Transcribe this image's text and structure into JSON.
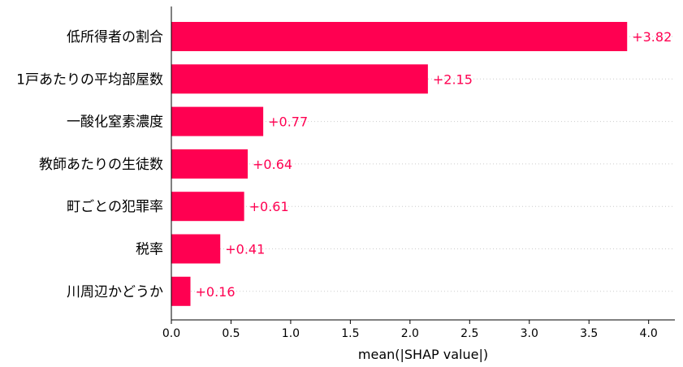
{
  "chart_data": {
    "type": "bar",
    "orientation": "horizontal",
    "categories": [
      "低所得者の割合",
      "1戸あたりの平均部屋数",
      "一酸化窒素濃度",
      "教師あたりの生徒数",
      "町ごとの犯罪率",
      "税率",
      "川周辺かどうか"
    ],
    "values": [
      3.82,
      2.15,
      0.77,
      0.64,
      0.61,
      0.41,
      0.16
    ],
    "value_labels": [
      "+3.82",
      "+2.15",
      "+0.77",
      "+0.64",
      "+0.61",
      "+0.41",
      "+0.16"
    ],
    "xlabel": "mean(|SHAP value|)",
    "ylabel": "",
    "xlim": [
      0,
      4.22
    ],
    "xticks": [
      0,
      0.5,
      1,
      1.5,
      2,
      2.5,
      3,
      3.5,
      4
    ],
    "xtick_labels": [
      "0.0",
      "0.5",
      "1.0",
      "1.5",
      "2.0",
      "2.5",
      "3.0",
      "3.5",
      "4.0"
    ],
    "bar_color": "#ff0051",
    "label_color": "#ff0051",
    "grid": "dotted horizontal guide lines per row"
  }
}
